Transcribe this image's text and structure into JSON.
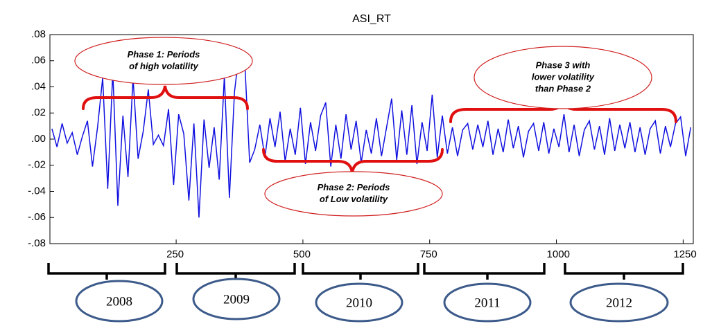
{
  "chart_data": {
    "type": "line",
    "title": "ASI_RT",
    "color": "#1010e0",
    "x": [
      5,
      15,
      25,
      35,
      45,
      55,
      65,
      75,
      85,
      95,
      105,
      115,
      125,
      135,
      145,
      155,
      165,
      175,
      185,
      195,
      205,
      215,
      225,
      235,
      245,
      255,
      265,
      275,
      285,
      295,
      305,
      315,
      325,
      335,
      345,
      355,
      365,
      375,
      385,
      395,
      405,
      415,
      425,
      435,
      445,
      455,
      465,
      475,
      485,
      495,
      505,
      515,
      525,
      535,
      545,
      555,
      565,
      575,
      585,
      595,
      605,
      615,
      625,
      635,
      645,
      655,
      665,
      675,
      685,
      695,
      705,
      715,
      725,
      735,
      745,
      755,
      765,
      775,
      785,
      795,
      805,
      815,
      825,
      835,
      845,
      855,
      865,
      875,
      885,
      895,
      905,
      915,
      925,
      935,
      945,
      955,
      965,
      975,
      985,
      995,
      1005,
      1015,
      1025,
      1035,
      1045,
      1055,
      1065,
      1075,
      1085,
      1095,
      1105,
      1115,
      1125,
      1135,
      1145,
      1155,
      1165,
      1175,
      1185,
      1195,
      1205,
      1215,
      1225,
      1235,
      1245,
      1255,
      1265
    ],
    "values": [
      0.008,
      -0.006,
      0.012,
      -0.003,
      0.005,
      -0.012,
      0.002,
      0.014,
      -0.021,
      0.009,
      0.047,
      -0.038,
      0.052,
      -0.051,
      0.018,
      -0.029,
      0.047,
      -0.015,
      0.006,
      0.038,
      -0.004,
      0.003,
      -0.005,
      0.023,
      -0.035,
      0.019,
      0.004,
      -0.047,
      0.012,
      -0.06,
      0.015,
      -0.022,
      0.009,
      -0.031,
      0.048,
      -0.045,
      0.036,
      0.069,
      0.062,
      -0.018,
      -0.008,
      0.011,
      -0.014,
      0.016,
      -0.006,
      0.021,
      -0.017,
      0.008,
      -0.012,
      0.024,
      -0.019,
      0.013,
      -0.009,
      0.018,
      0.028,
      -0.021,
      0.011,
      -0.015,
      0.019,
      -0.008,
      0.014,
      -0.018,
      0.007,
      -0.011,
      0.016,
      -0.013,
      0.009,
      0.031,
      -0.016,
      0.022,
      -0.012,
      0.026,
      -0.019,
      0.013,
      -0.009,
      0.034,
      -0.014,
      0.018,
      -0.011,
      0.009,
      -0.013,
      0.007,
      0.012,
      -0.008,
      0.011,
      -0.006,
      0.014,
      -0.012,
      0.008,
      -0.01,
      0.015,
      -0.007,
      0.01,
      -0.014,
      0.006,
      0.012,
      -0.009,
      0.013,
      -0.011,
      0.008,
      -0.006,
      0.019,
      -0.01,
      0.011,
      -0.013,
      0.007,
      0.014,
      -0.008,
      0.01,
      -0.012,
      0.016,
      -0.009,
      0.011,
      -0.007,
      0.013,
      -0.01,
      0.009,
      -0.012,
      0.008,
      0.014,
      -0.011,
      0.01,
      -0.006,
      0.012,
      0.017,
      -0.013,
      0.009
    ],
    "xlim": [
      1,
      1270
    ],
    "xticks": [
      250,
      500,
      750,
      1000,
      1250
    ],
    "ylim": [
      -0.08,
      0.08
    ],
    "yticks": [
      {
        "value": 0.08,
        "label": ".08"
      },
      {
        "value": 0.06,
        "label": ".06"
      },
      {
        "value": 0.04,
        "label": ".04"
      },
      {
        "value": 0.02,
        "label": ".02"
      },
      {
        "value": 0,
        "label": ".00"
      },
      {
        "value": -0.02,
        "label": "-.02"
      },
      {
        "value": -0.04,
        "label": "-.04"
      },
      {
        "value": -0.06,
        "label": "-.06"
      },
      {
        "value": -0.08,
        "label": "-.08"
      }
    ],
    "annotations": [
      {
        "lines": [
          "Phase 1: Periods",
          "of high volatility"
        ]
      },
      {
        "lines": [
          "Phase 2: Periods",
          "of Low volatility"
        ]
      },
      {
        "lines": [
          "Phase 3 with",
          "lower volatility",
          "than Phase 2"
        ]
      }
    ],
    "year_labels": [
      "2008",
      "2009",
      "2010",
      "2011",
      "2012"
    ]
  }
}
